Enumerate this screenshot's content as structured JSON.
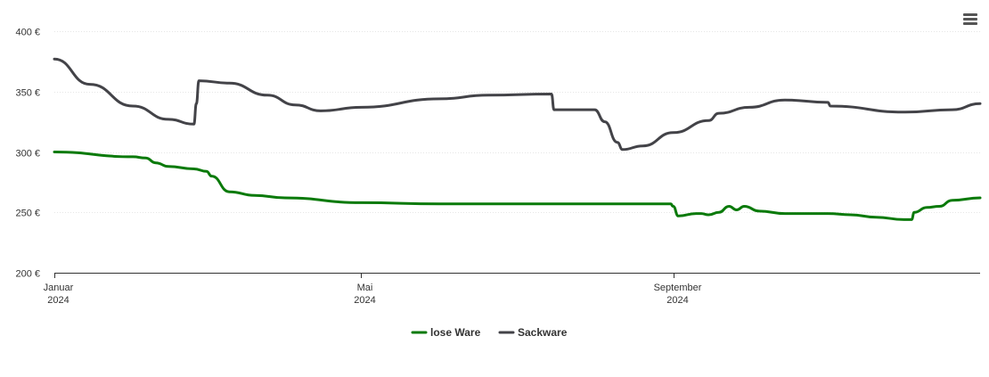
{
  "chart_data": {
    "type": "line",
    "title": "",
    "xlabel": "",
    "ylabel": "",
    "ylim": [
      200,
      400
    ],
    "y_ticks": [
      200,
      250,
      300,
      350,
      400
    ],
    "y_tick_labels": [
      "200 €",
      "250 €",
      "300 €",
      "350 €",
      "400 €"
    ],
    "x_range": [
      "2024-01-01",
      "2024-12-31"
    ],
    "x_ticks": [
      {
        "date": "2024-01-01",
        "label": "Januar",
        "year": "2024"
      },
      {
        "date": "2024-05-01",
        "label": "Mai",
        "year": "2024"
      },
      {
        "date": "2024-09-01",
        "label": "September",
        "year": "2024"
      }
    ],
    "grid": true,
    "legend_position": "bottom",
    "series": [
      {
        "name": "lose Ware",
        "color": "#0a7a0a",
        "points": [
          [
            "2024-01-01",
            300
          ],
          [
            "2024-02-01",
            296
          ],
          [
            "2024-02-06",
            295
          ],
          [
            "2024-02-10",
            291
          ],
          [
            "2024-02-15",
            288
          ],
          [
            "2024-02-25",
            286
          ],
          [
            "2024-03-01",
            284
          ],
          [
            "2024-03-03",
            280
          ],
          [
            "2024-03-10",
            267
          ],
          [
            "2024-03-20",
            264
          ],
          [
            "2024-04-01",
            262
          ],
          [
            "2024-05-01",
            258
          ],
          [
            "2024-06-01",
            257
          ],
          [
            "2024-08-01",
            257
          ],
          [
            "2024-08-31",
            257
          ],
          [
            "2024-09-01",
            255
          ],
          [
            "2024-09-03",
            247
          ],
          [
            "2024-09-10",
            249
          ],
          [
            "2024-09-12",
            249
          ],
          [
            "2024-09-15",
            248
          ],
          [
            "2024-09-19",
            250
          ],
          [
            "2024-09-23",
            255
          ],
          [
            "2024-09-26",
            252
          ],
          [
            "2024-09-29",
            255
          ],
          [
            "2024-10-05",
            251
          ],
          [
            "2024-10-15",
            249
          ],
          [
            "2024-11-01",
            249
          ],
          [
            "2024-11-10",
            248
          ],
          [
            "2024-11-20",
            246
          ],
          [
            "2024-12-01",
            244
          ],
          [
            "2024-12-04",
            244
          ],
          [
            "2024-12-05",
            250
          ],
          [
            "2024-12-10",
            254
          ],
          [
            "2024-12-15",
            255
          ],
          [
            "2024-12-20",
            260
          ],
          [
            "2024-12-31",
            262
          ]
        ]
      },
      {
        "name": "Sackware",
        "color": "#434348",
        "points": [
          [
            "2024-01-01",
            377
          ],
          [
            "2024-01-15",
            356
          ],
          [
            "2024-02-01",
            338
          ],
          [
            "2024-02-15",
            327
          ],
          [
            "2024-02-25",
            323
          ],
          [
            "2024-02-26",
            340
          ],
          [
            "2024-02-27",
            359
          ],
          [
            "2024-03-10",
            357
          ],
          [
            "2024-03-25",
            347
          ],
          [
            "2024-04-05",
            339
          ],
          [
            "2024-04-15",
            334
          ],
          [
            "2024-05-01",
            337
          ],
          [
            "2024-06-01",
            344
          ],
          [
            "2024-06-20",
            347
          ],
          [
            "2024-07-15",
            348
          ],
          [
            "2024-07-16",
            335
          ],
          [
            "2024-08-01",
            335
          ],
          [
            "2024-08-05",
            325
          ],
          [
            "2024-08-10",
            308
          ],
          [
            "2024-08-12",
            302
          ],
          [
            "2024-08-20",
            305
          ],
          [
            "2024-09-01",
            316
          ],
          [
            "2024-09-15",
            326
          ],
          [
            "2024-09-19",
            332
          ],
          [
            "2024-10-01",
            337
          ],
          [
            "2024-10-15",
            343
          ],
          [
            "2024-11-01",
            341
          ],
          [
            "2024-11-02",
            338
          ],
          [
            "2024-12-01",
            333
          ],
          [
            "2024-12-20",
            335
          ],
          [
            "2024-12-31",
            340
          ]
        ]
      }
    ]
  },
  "menu": {
    "icon": "hamburger-menu-icon"
  },
  "colors": {
    "axis": "#333333",
    "grid": "#e6e6e6",
    "text": "#333333"
  }
}
